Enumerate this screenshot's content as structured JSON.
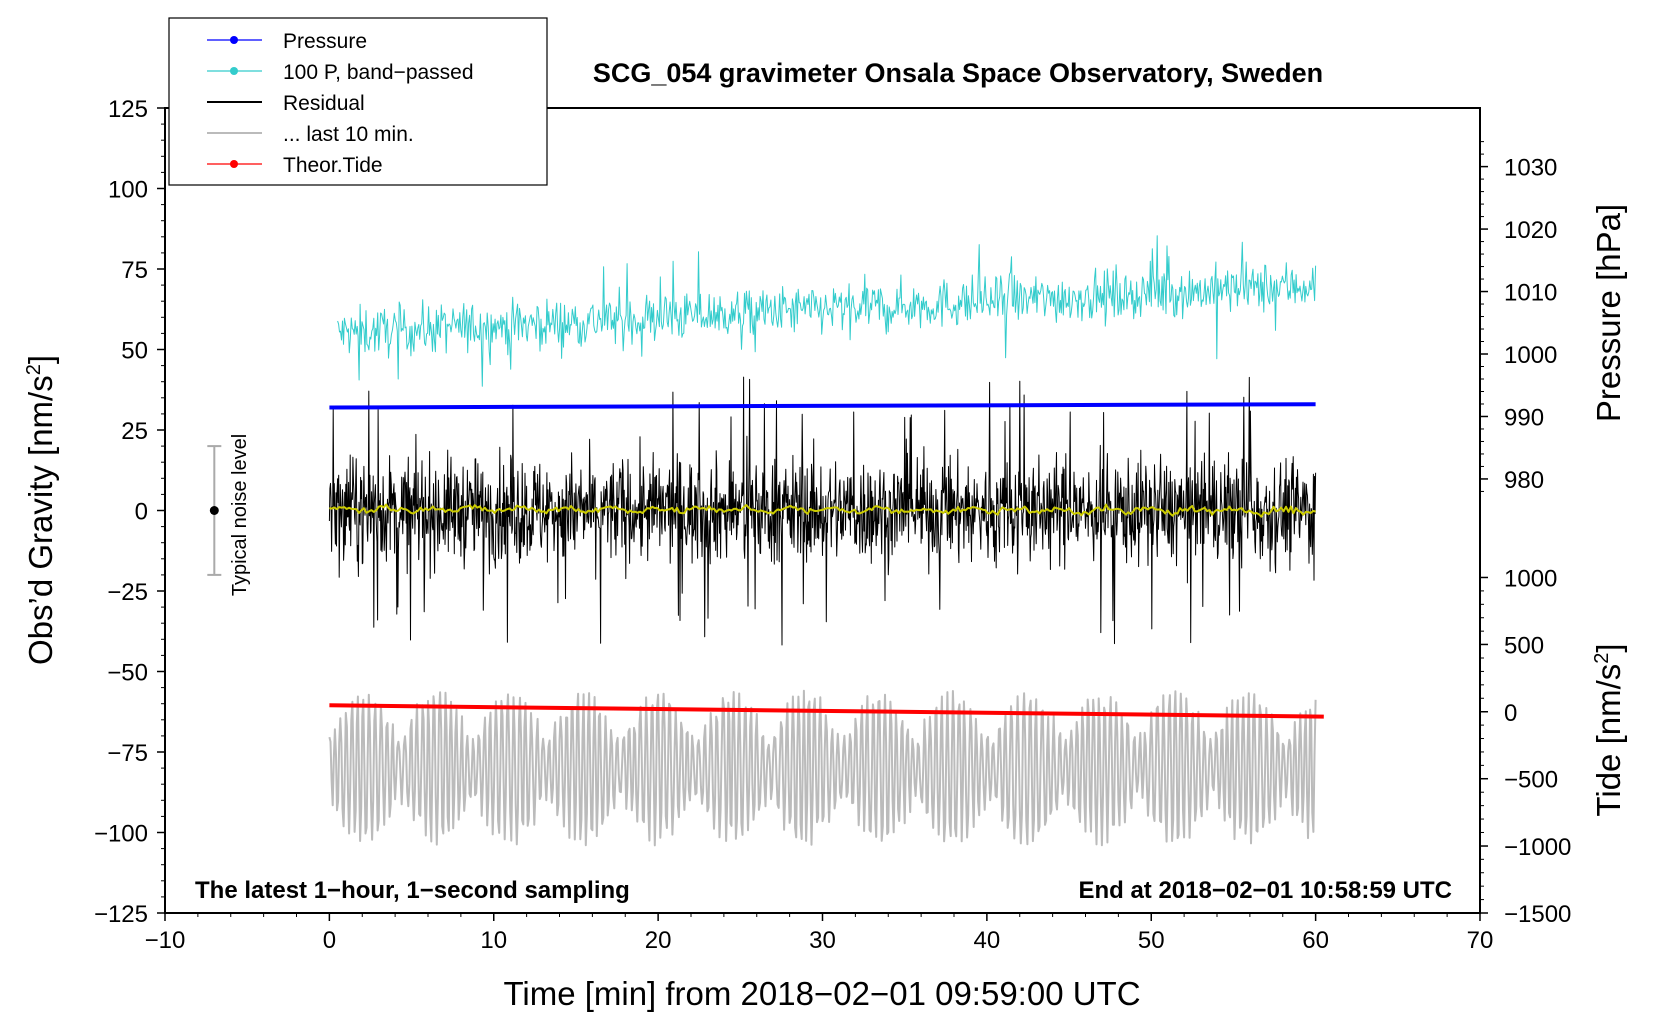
{
  "chart_data": {
    "type": "line",
    "title": "SCG_054 gravimeter Onsala Space Observatory, Sweden",
    "xlabel": "Time [min] from 2018−02−01 09:59:00 UTC",
    "ylabel": "Obs’d Gravity [nm/s",
    "ylabel_sup": "2",
    "ylabel_end": "]",
    "y2label": "Pressure [hPa]",
    "y3label": "Tide [nm/s",
    "y3label_sup": "2",
    "y3label_end": "]",
    "xlim": [
      -10,
      70
    ],
    "ylim": [
      -125,
      125
    ],
    "x_ticks": [
      "−10",
      "0",
      "10",
      "20",
      "30",
      "40",
      "50",
      "60",
      "70"
    ],
    "x_tick_values": [
      -10,
      0,
      10,
      20,
      30,
      40,
      50,
      60,
      70
    ],
    "y_ticks": [
      "125",
      "100",
      "75",
      "50",
      "25",
      "0",
      "−25",
      "−50",
      "−75",
      "−100",
      "−125"
    ],
    "y_tick_values": [
      125,
      100,
      75,
      50,
      25,
      0,
      -25,
      -50,
      -75,
      -100,
      -125
    ],
    "pressure_axis": {
      "ticks": [
        "1030",
        "1020",
        "1010",
        "1000",
        "990",
        "980"
      ],
      "tick_values": [
        1030,
        1020,
        1010,
        1000,
        990,
        980
      ],
      "gravity_equiv": [
        106.8,
        87.4,
        68.0,
        48.6,
        29.2,
        9.8
      ]
    },
    "tide_axis": {
      "ticks": [
        "1000",
        "500",
        "0",
        "−500",
        "−1000",
        "−1500"
      ],
      "tick_values": [
        1000,
        500,
        0,
        -500,
        -1000,
        -1500
      ],
      "gravity_equiv": [
        -20.8,
        -41.6,
        -62.5,
        -83.3,
        -104.2,
        -125
      ]
    },
    "legend": {
      "position": "top-left",
      "entries": [
        {
          "label": "Pressure",
          "color": "#0000ff",
          "marker": true
        },
        {
          "label": "100 P, band−passed",
          "color": "#33cccc",
          "marker": true
        },
        {
          "label": "Residual",
          "color": "#000000",
          "marker": false
        },
        {
          "label": "... last 10 min.",
          "color": "#bbbbbb",
          "marker": false
        },
        {
          "label": "Theor.Tide",
          "color": "#ff0000",
          "marker": true
        }
      ]
    },
    "annotations": {
      "bottom_left": "The latest 1−hour, 1−second sampling",
      "bottom_right": "End at 2018−02−01 10:58:59 UTC",
      "noise_label": "Typical noise level",
      "noise_bar": {
        "x": -7,
        "center": 0,
        "half_range": 20
      }
    },
    "series": [
      {
        "name": "Pressure",
        "color": "#0000ff",
        "x": [
          0,
          60
        ],
        "y": [
          32,
          33
        ]
      },
      {
        "name": "100 P, band−passed",
        "color": "#33cccc",
        "x_range": [
          0.5,
          60
        ],
        "trend_start": 55,
        "trend_end": 70,
        "amplitude": 7
      },
      {
        "name": "Residual",
        "color": "#000000",
        "x_range": [
          0,
          60
        ],
        "mean": 0,
        "amplitude": 15,
        "extreme": 42
      },
      {
        "name": "Smoothed residual",
        "color": "#cccc00",
        "x_range": [
          0,
          60
        ],
        "mean": 0.5,
        "amplitude": 1.5
      },
      {
        "name": "... last 10 min.",
        "color": "#bbbbbb",
        "x_range": [
          0,
          60
        ],
        "mean": -80,
        "amplitude": 20
      },
      {
        "name": "Theor.Tide",
        "color": "#ff0000",
        "x": [
          0,
          60.5
        ],
        "y": [
          -60.5,
          -64
        ]
      }
    ]
  }
}
